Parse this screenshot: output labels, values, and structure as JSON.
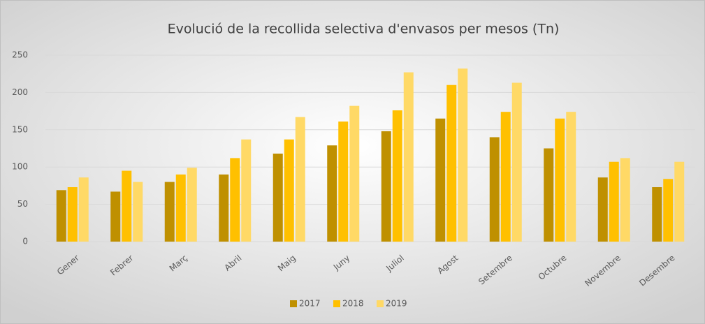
{
  "chart_data": {
    "type": "bar",
    "title": "Evolució de la recollida selectiva d'envasos per mesos (Tn)",
    "categories": [
      "Gener",
      "Febrer",
      "Març",
      "Abril",
      "Maig",
      "Juny",
      "Juliol",
      "Agost",
      "Setembre",
      "Octubre",
      "Novembre",
      "Desembre"
    ],
    "series": [
      {
        "name": "2017",
        "color": "#bf9000",
        "values": [
          69,
          67,
          80,
          90,
          118,
          129,
          148,
          165,
          140,
          125,
          86,
          73
        ]
      },
      {
        "name": "2018",
        "color": "#ffc000",
        "values": [
          73,
          95,
          90,
          112,
          137,
          161,
          176,
          210,
          174,
          165,
          107,
          84
        ]
      },
      {
        "name": "2019",
        "color": "#ffd966",
        "values": [
          86,
          80,
          99,
          137,
          167,
          182,
          227,
          232,
          213,
          174,
          112,
          107
        ]
      }
    ],
    "ylim": [
      0,
      250
    ],
    "yticks": [
      0,
      50,
      100,
      150,
      200,
      250
    ],
    "grid": true,
    "legend": "bottom"
  }
}
